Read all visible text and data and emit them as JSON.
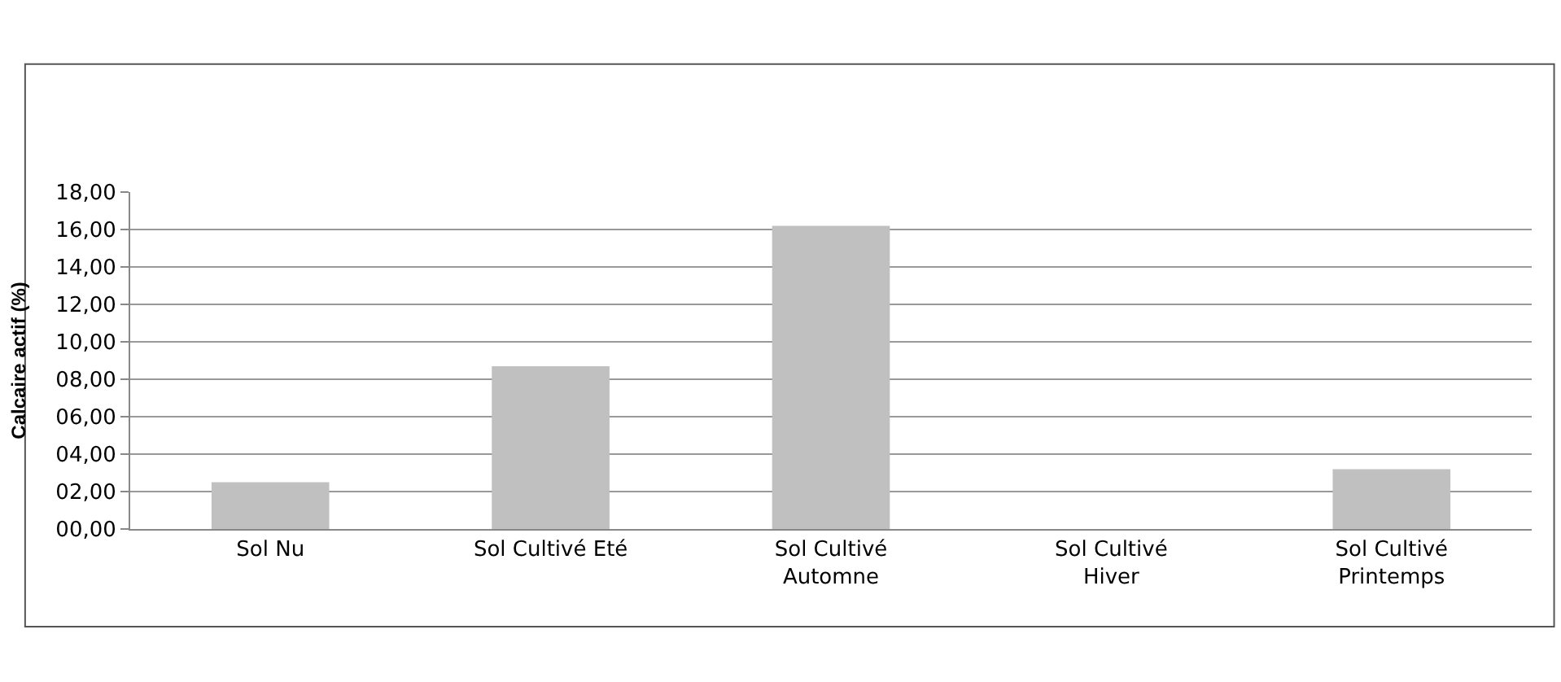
{
  "chart_data": {
    "type": "bar",
    "ylabel": "Calcaire actif (%)",
    "categories": [
      "Sol Nu",
      "Sol Cultivé Eté",
      "Sol Cultivé\nAutomne",
      "Sol Cultivé\nHiver",
      "Sol Cultivé\nPrintemps"
    ],
    "values": [
      2.5,
      8.7,
      16.2,
      null,
      3.2
    ],
    "color": "#c0c0c0",
    "ylim": [
      0,
      18
    ],
    "yticks": [
      {
        "value": 0,
        "label": "00,00"
      },
      {
        "value": 2,
        "label": "02,00"
      },
      {
        "value": 4,
        "label": "04,00"
      },
      {
        "value": 6,
        "label": "06,00"
      },
      {
        "value": 8,
        "label": "08,00"
      },
      {
        "value": 10,
        "label": "10,00"
      },
      {
        "value": 12,
        "label": "12,00"
      },
      {
        "value": 14,
        "label": "14,00"
      },
      {
        "value": 16,
        "label": "16,00"
      },
      {
        "value": 18,
        "label": "18,00"
      }
    ],
    "grid": "y"
  }
}
